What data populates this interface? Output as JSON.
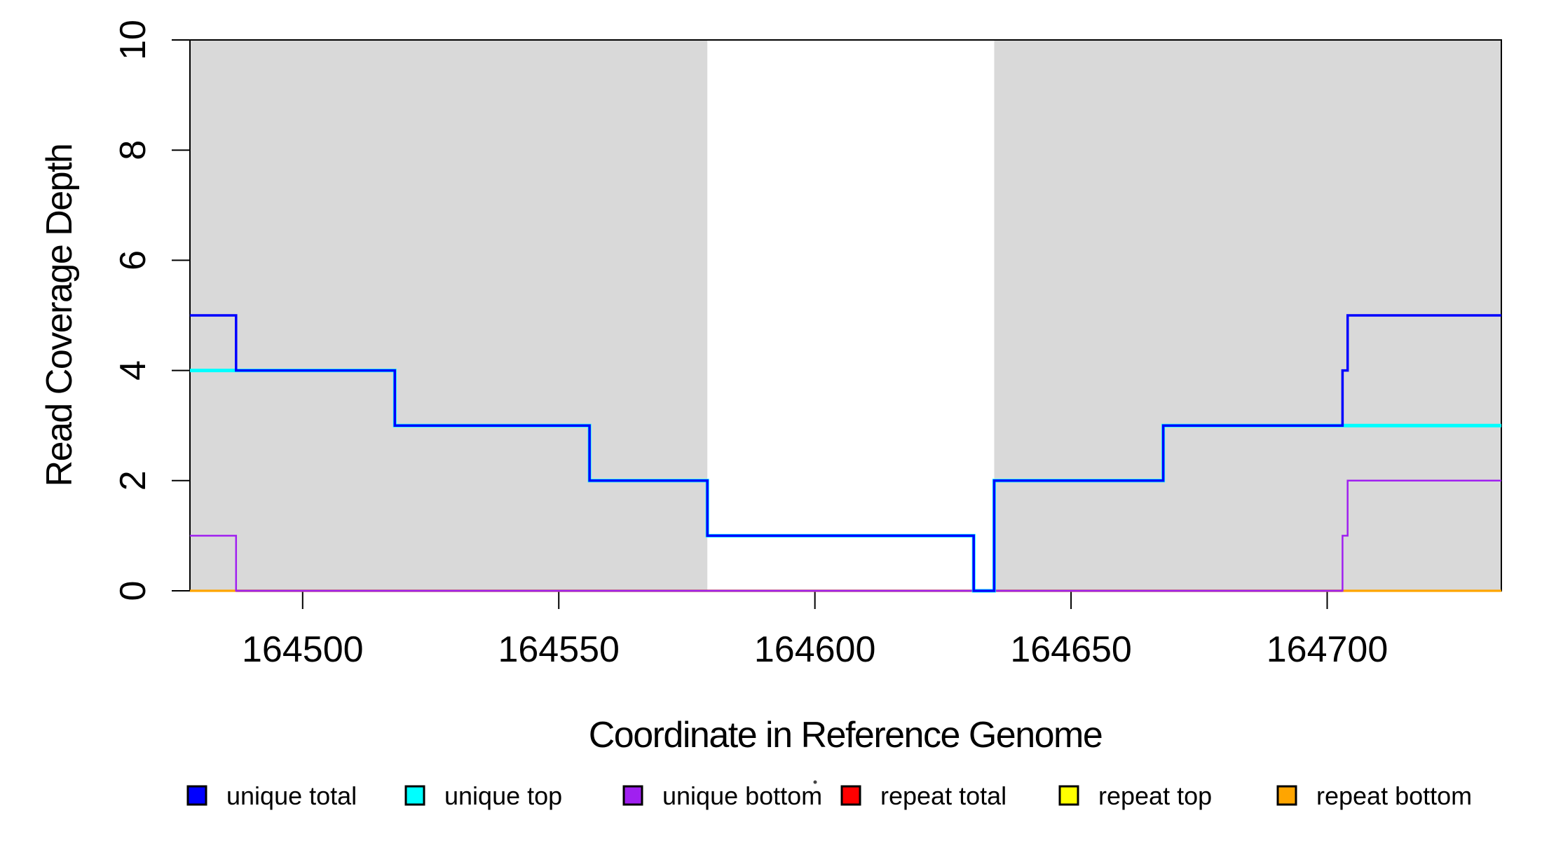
{
  "chart_data": {
    "type": "line",
    "subtype": "step-coverage-plot",
    "title": "",
    "xlabel": "Coordinate in Reference Genome",
    "ylabel": "Read Coverage Depth",
    "xlim": [
      164478,
      164734
    ],
    "ylim": [
      0,
      10
    ],
    "grid": false,
    "x_ticks": [
      {
        "value": 164500,
        "label": "164500"
      },
      {
        "value": 164550,
        "label": "164550"
      },
      {
        "value": 164600,
        "label": "164600"
      },
      {
        "value": 164650,
        "label": "164650"
      },
      {
        "value": 164700,
        "label": "164700"
      }
    ],
    "y_ticks": [
      {
        "value": 0,
        "label": "0"
      },
      {
        "value": 2,
        "label": "2"
      },
      {
        "value": 4,
        "label": "4"
      },
      {
        "value": 6,
        "label": "6"
      },
      {
        "value": 8,
        "label": "8"
      },
      {
        "value": 10,
        "label": "10"
      }
    ],
    "shaded_regions": [
      {
        "from": 164478,
        "to": 164579,
        "color": "#d9d9d9"
      },
      {
        "from": 164635,
        "to": 164734,
        "color": "#d9d9d9"
      }
    ],
    "series": [
      {
        "name": "unique total",
        "color": "#0000ff",
        "steps": [
          [
            164478,
            5
          ],
          [
            164487,
            4
          ],
          [
            164518,
            3
          ],
          [
            164556,
            2
          ],
          [
            164579,
            1
          ],
          [
            164631,
            0
          ],
          [
            164635,
            2
          ],
          [
            164668,
            3
          ],
          [
            164703,
            4
          ],
          [
            164704,
            5
          ]
        ],
        "end": 164734
      },
      {
        "name": "unique top",
        "color": "#00ffff",
        "steps": [
          [
            164478,
            4
          ],
          [
            164518,
            3
          ],
          [
            164556,
            2
          ],
          [
            164579,
            1
          ],
          [
            164631,
            0
          ],
          [
            164635,
            2
          ],
          [
            164668,
            3
          ]
        ],
        "end": 164734
      },
      {
        "name": "unique bottom",
        "color": "#a020f0",
        "steps": [
          [
            164478,
            1
          ],
          [
            164487,
            0
          ],
          [
            164703,
            1
          ],
          [
            164704,
            2
          ]
        ],
        "end": 164734
      },
      {
        "name": "repeat total",
        "color": "#ff0000",
        "steps": [
          [
            164478,
            0
          ]
        ],
        "end": 164734
      },
      {
        "name": "repeat top",
        "color": "#ffff00",
        "steps": [
          [
            164478,
            0
          ]
        ],
        "end": 164734
      },
      {
        "name": "repeat bottom",
        "color": "#ffa500",
        "steps": [
          [
            164478,
            0
          ]
        ],
        "end": 164734
      }
    ],
    "legend": {
      "position": "bottom",
      "entries": [
        {
          "label": "unique total",
          "color": "#0000ff"
        },
        {
          "label": "unique top",
          "color": "#00ffff"
        },
        {
          "label": "unique bottom",
          "color": "#a020f0"
        },
        {
          "label": "repeat total",
          "color": "#ff0000"
        },
        {
          "label": "repeat top",
          "color": "#ffff00"
        },
        {
          "label": "repeat bottom",
          "color": "#ffa500"
        }
      ]
    }
  }
}
